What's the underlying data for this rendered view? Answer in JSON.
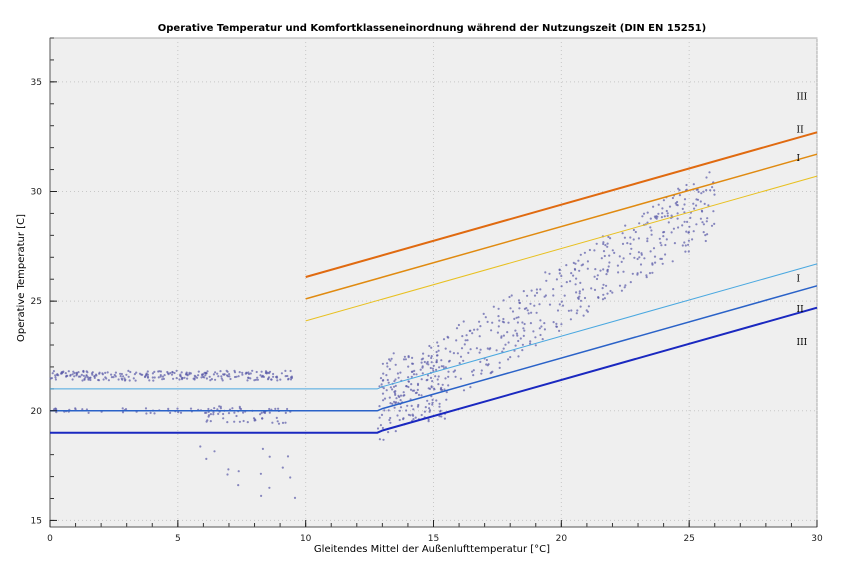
{
  "chart_data": {
    "type": "scatter",
    "title": "Operative Temperatur und Komfortklasseneinordnung während der Nutzungszeit (DIN EN 15251)",
    "xlabel": "Gleitendes Mittel der Außenlufttemperatur [°C]",
    "ylabel": "Operative Temperatur [C]",
    "xlim": [
      0,
      30
    ],
    "ylim": [
      14.7,
      37
    ],
    "xticks": [
      0,
      5,
      10,
      15,
      20,
      25,
      30
    ],
    "yticks": [
      15,
      20,
      25,
      30,
      35
    ],
    "grid": true,
    "series": [
      {
        "name": "Obergrenze Klasse III",
        "color": "#e06a10",
        "x": [
          10,
          30
        ],
        "y": [
          26.1,
          32.7
        ]
      },
      {
        "name": "Obergrenze Klasse II",
        "color": "#e08a10",
        "x": [
          10,
          30
        ],
        "y": [
          25.1,
          31.7
        ]
      },
      {
        "name": "Obergrenze Klasse I",
        "color": "#e8c020",
        "x": [
          10,
          30
        ],
        "y": [
          24.1,
          30.7
        ]
      },
      {
        "name": "Untergrenze Klasse I",
        "color": "#4aa8e0",
        "x": [
          0,
          12.8,
          13,
          30
        ],
        "y": [
          21,
          21,
          21.1,
          26.7
        ]
      },
      {
        "name": "Untergrenze Klasse II",
        "color": "#2a62c8",
        "x": [
          0,
          12.8,
          13,
          30
        ],
        "y": [
          20,
          20,
          20.1,
          25.7
        ]
      },
      {
        "name": "Untergrenze Klasse III",
        "color": "#1a28c0",
        "x": [
          0,
          12.8,
          13,
          30
        ],
        "y": [
          19,
          19,
          19.1,
          24.7
        ]
      }
    ],
    "scatter_color": "#5a5aa8",
    "zone_labels": [
      {
        "text": "III",
        "x": 29.2,
        "y": 34.2
      },
      {
        "text": "II",
        "x": 29.2,
        "y": 32.7
      },
      {
        "text": "I",
        "x": 29.2,
        "y": 31.4
      },
      {
        "text": "I",
        "x": 29.2,
        "y": 25.9
      },
      {
        "text": "II",
        "x": 29.2,
        "y": 24.5
      },
      {
        "text": "III",
        "x": 29.2,
        "y": 23.0
      }
    ]
  }
}
